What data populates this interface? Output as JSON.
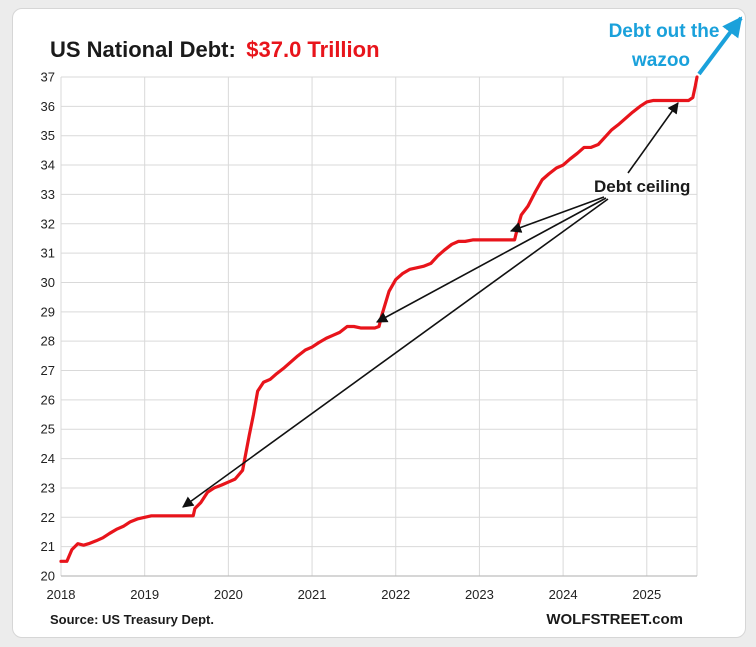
{
  "chart_data": {
    "type": "line",
    "title": "US National Debt:",
    "title_value": "$37.0 Trillion",
    "xlabel": "",
    "ylabel": "",
    "ylim": [
      20,
      37
    ],
    "xlim": [
      2018,
      2025.6
    ],
    "yticks": [
      "20",
      "21",
      "22",
      "23",
      "24",
      "25",
      "26",
      "27",
      "28",
      "29",
      "30",
      "31",
      "32",
      "33",
      "34",
      "35",
      "36",
      "37"
    ],
    "xticks": [
      "2018",
      "2019",
      "2020",
      "2021",
      "2022",
      "2023",
      "2024",
      "2025"
    ],
    "grid": true,
    "line_color": "#e8141b",
    "annotations": {
      "debt_ceiling": "Debt ceiling",
      "wazoo_line1": "Debt out the",
      "wazoo_line2": "wazoo"
    },
    "annotation_color": "#1aa1db",
    "source": "Source: US Treasury Dept.",
    "brand": "WOLFSTREET.com",
    "series": [
      {
        "x": [
          2018.0,
          2018.07,
          2018.13,
          2018.2,
          2018.27,
          2018.33,
          2018.42,
          2018.5,
          2018.58,
          2018.67,
          2018.75,
          2018.83,
          2018.92,
          2019.0,
          2019.08,
          2019.17,
          2019.25,
          2019.33,
          2019.42,
          2019.5,
          2019.58,
          2019.6,
          2019.67,
          2019.75,
          2019.83,
          2019.92,
          2020.0,
          2020.08,
          2020.17,
          2020.25,
          2020.3,
          2020.35,
          2020.42,
          2020.5,
          2020.58,
          2020.67,
          2020.75,
          2020.83,
          2020.92,
          2021.0,
          2021.08,
          2021.17,
          2021.25,
          2021.33,
          2021.42,
          2021.5,
          2021.58,
          2021.67,
          2021.75,
          2021.8,
          2021.83,
          2021.92,
          2022.0,
          2022.08,
          2022.17,
          2022.25,
          2022.33,
          2022.42,
          2022.5,
          2022.58,
          2022.67,
          2022.75,
          2022.83,
          2022.92,
          2023.0,
          2023.08,
          2023.17,
          2023.25,
          2023.3,
          2023.42,
          2023.45,
          2023.5,
          2023.58,
          2023.67,
          2023.75,
          2023.83,
          2023.92,
          2024.0,
          2024.08,
          2024.17,
          2024.25,
          2024.33,
          2024.42,
          2024.5,
          2024.58,
          2024.67,
          2024.75,
          2024.83,
          2024.92,
          2025.0,
          2025.08,
          2025.17,
          2025.25,
          2025.33,
          2025.42,
          2025.5,
          2025.55,
          2025.58,
          2025.6
        ],
        "values": [
          20.5,
          20.5,
          20.9,
          21.1,
          21.05,
          21.1,
          21.2,
          21.3,
          21.45,
          21.6,
          21.7,
          21.85,
          21.95,
          22.0,
          22.05,
          22.05,
          22.05,
          22.05,
          22.05,
          22.05,
          22.05,
          22.3,
          22.5,
          22.85,
          23.0,
          23.1,
          23.2,
          23.3,
          23.6,
          24.8,
          25.5,
          26.3,
          26.6,
          26.7,
          26.9,
          27.1,
          27.3,
          27.5,
          27.7,
          27.8,
          27.95,
          28.1,
          28.2,
          28.3,
          28.5,
          28.5,
          28.45,
          28.45,
          28.45,
          28.5,
          28.85,
          29.7,
          30.1,
          30.3,
          30.45,
          30.5,
          30.55,
          30.65,
          30.9,
          31.1,
          31.3,
          31.4,
          31.4,
          31.45,
          31.45,
          31.45,
          31.45,
          31.45,
          31.45,
          31.45,
          31.8,
          32.3,
          32.6,
          33.1,
          33.5,
          33.7,
          33.9,
          34.0,
          34.2,
          34.4,
          34.6,
          34.6,
          34.7,
          34.95,
          35.2,
          35.4,
          35.6,
          35.8,
          36.0,
          36.15,
          36.2,
          36.2,
          36.2,
          36.2,
          36.2,
          36.2,
          36.3,
          36.7,
          37.0
        ]
      }
    ]
  }
}
